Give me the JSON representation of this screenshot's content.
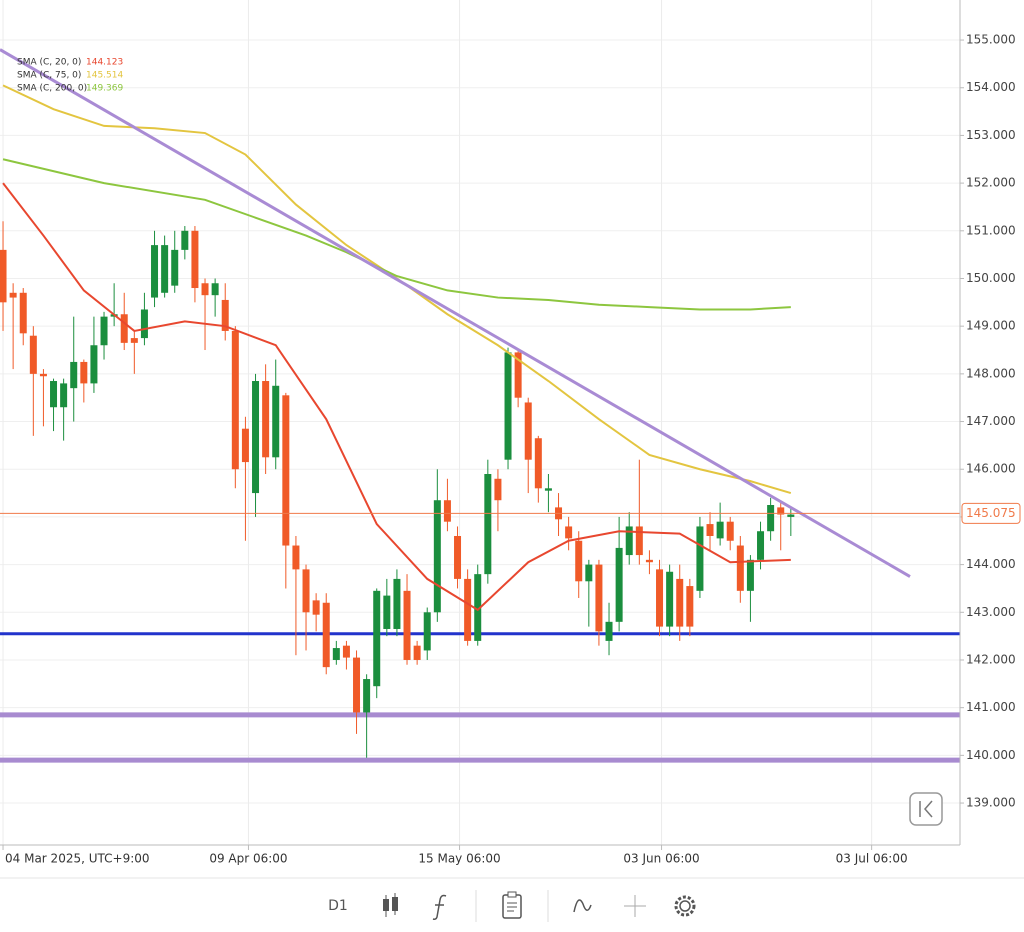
{
  "chart_data": {
    "type": "candlestick",
    "open": [
      150.6,
      149.7,
      149.7,
      148.8,
      148.0,
      147.3,
      147.3,
      147.7,
      148.25,
      147.8,
      148.6,
      149.2,
      149.25,
      148.75,
      148.75,
      149.6,
      149.7,
      149.85,
      150.6,
      151.0,
      149.9,
      149.65,
      149.55,
      148.9,
      146.85,
      145.5,
      147.85,
      146.25,
      147.55,
      144.4,
      143.9,
      143.25,
      143.2,
      142.0,
      142.3,
      142.05,
      140.9,
      141.45,
      142.65,
      142.65,
      143.45,
      142.3,
      142.2,
      143.0,
      145.35,
      144.6,
      143.7,
      142.4,
      143.8,
      145.8,
      146.2,
      148.45,
      147.4,
      146.65,
      145.55,
      145.2,
      144.8,
      144.5,
      143.65,
      144.0,
      142.4,
      142.8,
      144.2,
      144.8,
      144.1,
      143.9,
      142.7,
      143.7,
      143.55,
      143.45,
      144.85,
      144.55,
      144.9,
      144.4,
      143.45,
      144.1,
      144.7,
      145.2,
      145.0
    ],
    "high": [
      151.2,
      149.9,
      149.8,
      149.0,
      148.1,
      147.9,
      147.9,
      149.2,
      148.3,
      149.2,
      149.3,
      149.9,
      149.7,
      148.9,
      149.7,
      151.0,
      150.9,
      151.0,
      151.1,
      151.1,
      150.0,
      150.0,
      149.9,
      149.0,
      147.1,
      148.0,
      148.2,
      148.3,
      147.6,
      144.6,
      144.0,
      143.4,
      143.4,
      142.4,
      142.4,
      142.2,
      141.7,
      143.5,
      143.7,
      143.9,
      143.8,
      142.4,
      143.1,
      146.0,
      145.8,
      144.8,
      143.9,
      144.0,
      146.2,
      146.0,
      148.55,
      148.5,
      147.5,
      146.7,
      145.9,
      145.5,
      145.0,
      144.7,
      144.1,
      144.1,
      143.2,
      145.0,
      145.1,
      146.2,
      144.3,
      144.1,
      144.0,
      144.0,
      143.7,
      145.0,
      145.1,
      145.3,
      145.0,
      144.6,
      144.2,
      144.9,
      145.4,
      145.3,
      145.2
    ],
    "low": [
      148.9,
      148.1,
      148.6,
      146.7,
      146.9,
      146.8,
      146.6,
      147.0,
      147.4,
      147.6,
      148.3,
      149.0,
      148.5,
      148.0,
      148.6,
      149.4,
      149.6,
      149.7,
      150.4,
      149.5,
      148.5,
      149.2,
      148.7,
      145.6,
      144.5,
      145.0,
      145.9,
      146.0,
      143.5,
      142.1,
      142.2,
      142.6,
      141.7,
      141.9,
      141.8,
      140.45,
      139.95,
      141.2,
      142.5,
      142.5,
      141.9,
      141.9,
      142.0,
      142.8,
      144.7,
      143.5,
      142.3,
      142.3,
      143.6,
      144.7,
      146.0,
      147.3,
      145.5,
      145.3,
      145.1,
      144.6,
      144.3,
      143.3,
      142.7,
      142.3,
      142.1,
      142.6,
      144.0,
      144.0,
      143.8,
      142.5,
      142.5,
      142.4,
      142.5,
      143.3,
      144.3,
      144.4,
      144.3,
      143.2,
      142.8,
      143.9,
      144.5,
      144.3,
      144.6
    ],
    "close": [
      149.5,
      149.6,
      148.85,
      148.0,
      147.95,
      147.85,
      147.8,
      148.25,
      147.8,
      148.6,
      149.2,
      149.25,
      148.65,
      148.65,
      149.35,
      150.7,
      150.7,
      150.6,
      151.0,
      149.8,
      149.65,
      149.9,
      148.9,
      146.0,
      146.15,
      147.85,
      146.25,
      147.75,
      144.4,
      143.9,
      143.0,
      142.95,
      141.85,
      142.25,
      142.05,
      140.9,
      141.6,
      143.45,
      143.35,
      143.7,
      142.0,
      142.0,
      143.0,
      145.35,
      144.9,
      143.7,
      142.4,
      143.8,
      145.9,
      145.35,
      148.45,
      147.5,
      146.2,
      145.6,
      145.6,
      144.95,
      144.55,
      143.65,
      144.0,
      142.6,
      142.8,
      144.35,
      144.8,
      144.2,
      144.05,
      142.7,
      143.85,
      142.7,
      142.7,
      144.8,
      144.6,
      144.9,
      144.5,
      143.45,
      144.1,
      144.7,
      145.25,
      145.05,
      145.05
    ],
    "up_color": "#1b8e3e",
    "down_color": "#f05a28",
    "xlim": [
      -0.3,
      94.75
    ],
    "xticks": [
      {
        "value": 0,
        "label": "04 Mar 2025, UTC+9:00"
      },
      {
        "value": 24.3,
        "label": "09 Apr 06:00"
      },
      {
        "value": 45.2,
        "label": "15 May 06:00"
      },
      {
        "value": 65.2,
        "label": "03 Jun 06:00"
      },
      {
        "value": 86,
        "label": "03 Jul 06:00"
      }
    ],
    "ylim": [
      138.12,
      155.84
    ],
    "yticks": [
      {
        "value": 139,
        "label": "139.000"
      },
      {
        "value": 140,
        "label": "140.000"
      },
      {
        "value": 141,
        "label": "141.000"
      },
      {
        "value": 142,
        "label": "142.000"
      },
      {
        "value": 143,
        "label": "143.000"
      },
      {
        "value": 144,
        "label": "144.000"
      },
      {
        "value": 145,
        "label": "145.000"
      },
      {
        "value": 146,
        "label": "146.000"
      },
      {
        "value": 147,
        "label": "147.000"
      },
      {
        "value": 148,
        "label": "148.000"
      },
      {
        "value": 149,
        "label": "149.000"
      },
      {
        "value": 150,
        "label": "150.000"
      },
      {
        "value": 151,
        "label": "151.000"
      },
      {
        "value": 152,
        "label": "152.000"
      },
      {
        "value": 153,
        "label": "153.000"
      },
      {
        "value": 154,
        "label": "154.000"
      },
      {
        "value": 155,
        "label": "155.000"
      }
    ],
    "grid": true,
    "indicators": [
      {
        "name": "SMA (C, 20, 0)",
        "value": 144.123,
        "color": "#e8472f",
        "x": [
          0,
          4,
          8,
          13,
          18,
          22,
          27,
          32,
          37,
          42,
          47,
          52,
          56,
          61,
          67,
          72,
          78
        ],
        "values": [
          152.0,
          150.9,
          149.75,
          148.9,
          149.1,
          149.0,
          148.6,
          147.05,
          144.85,
          143.7,
          143.05,
          144.05,
          144.5,
          144.7,
          144.65,
          144.05,
          144.1
        ]
      },
      {
        "name": "SMA (C, 75, 0)",
        "value": 145.514,
        "color": "#e3c540",
        "x": [
          0,
          5,
          10,
          15,
          20,
          24,
          29,
          34,
          39,
          44,
          49,
          54,
          59,
          64,
          69,
          74,
          78
        ],
        "values": [
          154.05,
          153.55,
          153.2,
          153.15,
          153.05,
          152.6,
          151.55,
          150.7,
          150.0,
          149.25,
          148.6,
          147.85,
          147.05,
          146.3,
          146.0,
          145.75,
          145.5
        ]
      },
      {
        "name": "SMA (C, 200, 0)",
        "value": 149.369,
        "color": "#8dc63f",
        "x": [
          0,
          10,
          20,
          30,
          34,
          39,
          44,
          49,
          54,
          59,
          64,
          69,
          74,
          78
        ],
        "values": [
          152.5,
          152.0,
          151.65,
          150.9,
          150.55,
          150.05,
          149.75,
          149.6,
          149.55,
          149.45,
          149.4,
          149.35,
          149.35,
          149.4
        ]
      }
    ],
    "levels": [
      {
        "value": 142.55,
        "color": "#2233cc",
        "width": 3
      },
      {
        "value": 140.85,
        "color": "#a88bd0",
        "width": 5
      },
      {
        "value": 139.9,
        "color": "#a88bd0",
        "width": 5
      }
    ],
    "trendline": {
      "x": [
        -0.3,
        89.8
      ],
      "values": [
        154.8,
        143.75
      ],
      "color": "#a98bd4"
    },
    "last_price": {
      "value": 145.075,
      "color": "#f07a4a"
    }
  },
  "toolbar": {
    "timeframe": "D1"
  }
}
